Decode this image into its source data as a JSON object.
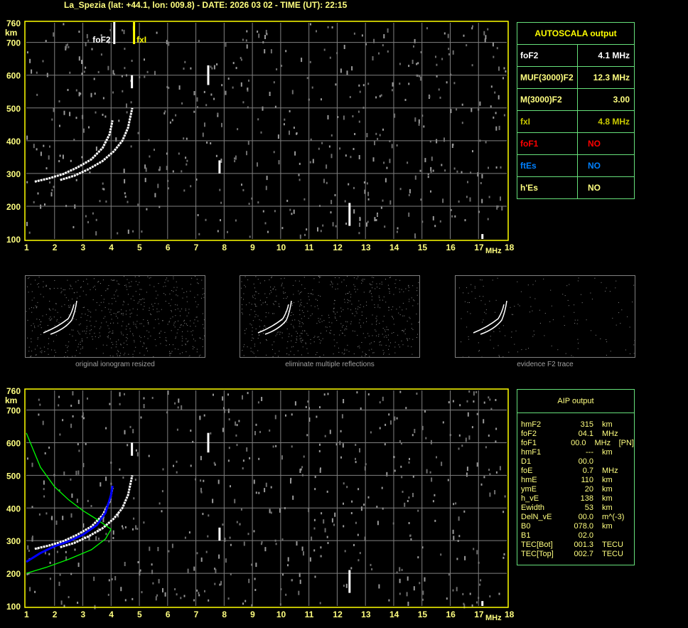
{
  "header": {
    "title": "La_Spezia (lat: +44.1, lon: 009.8) - DATE: 2026 03 02 - TIME (UT): 22:15"
  },
  "colors": {
    "frame": "#ffff00",
    "grid": "#808080",
    "table_border": "#66e07a",
    "text": "#ffff80",
    "fof2": "#ffffff",
    "fxi": "#c8c800",
    "fof1": "#ff0000",
    "ftes": "#0080ff",
    "profile": "#00ff00",
    "trace_fit": "#0000ff"
  },
  "autoscala": {
    "title": "AUTOSCALA output",
    "rows": [
      {
        "label": "foF2",
        "value": "4.1 MHz",
        "color": "#ffffff"
      },
      {
        "label": "MUF(3000)F2",
        "value": "12.3 MHz",
        "color": "#ffff80"
      },
      {
        "label": "M(3000)F2",
        "value": "3.00",
        "color": "#ffff80"
      },
      {
        "label": "fxI",
        "value": "4.8 MHz",
        "color": "#c8c800"
      },
      {
        "label": "foF1",
        "value": "NO",
        "color": "#ff0000"
      },
      {
        "label": "ftEs",
        "value": "NO",
        "color": "#0080ff"
      },
      {
        "label": "h'Es",
        "value": "NO",
        "color": "#ffff80"
      }
    ]
  },
  "aip": {
    "title": "AIP output",
    "rows": [
      [
        "hmF2",
        "315",
        "km",
        ""
      ],
      [
        "foF2",
        "04.1",
        "MHz",
        ""
      ],
      [
        "foF1",
        "00.0",
        "MHz",
        "[PN]"
      ],
      [
        "hmF1",
        "---",
        "km",
        ""
      ],
      [
        "D1",
        "00.0",
        "",
        ""
      ],
      [
        "foE",
        "0.7",
        "MHz",
        ""
      ],
      [
        "hmE",
        "110",
        "km",
        ""
      ],
      [
        "ymE",
        "20",
        "km",
        ""
      ],
      [
        "h_vE",
        "138",
        "km",
        ""
      ],
      [
        "Ewidth",
        "53",
        "km",
        ""
      ],
      [
        "DelN_vE",
        "00.0",
        "m^(-3)",
        ""
      ],
      [
        "B0",
        "078.0",
        "km",
        ""
      ],
      [
        "B1",
        "02.0",
        "",
        ""
      ],
      [
        "TEC[Bot]",
        "001.3",
        "TECU",
        ""
      ],
      [
        "TEC[Top]",
        "002.7",
        "TECU",
        ""
      ]
    ]
  },
  "thumbnails": [
    {
      "caption": "original ionogram resized"
    },
    {
      "caption": "eliminate multiple reflections"
    },
    {
      "caption": "evidence F2 trace"
    }
  ],
  "chart_data": {
    "type": "scatter",
    "xlabel": "MHz",
    "ylabel": "km",
    "xlim": [
      1,
      18
    ],
    "ylim": [
      100,
      760
    ],
    "xticks": [
      "1",
      "2",
      "3",
      "4",
      "5",
      "6",
      "7",
      "8",
      "9",
      "10",
      "11",
      "12",
      "13",
      "14",
      "15",
      "16",
      "17",
      "18"
    ],
    "yticks": [
      "100",
      "200",
      "300",
      "400",
      "500",
      "600",
      "700",
      "760"
    ],
    "grid": true,
    "markers": [
      {
        "label": "foF2",
        "freq": 4.1,
        "color": "#ffffff"
      },
      {
        "label": "fxI",
        "freq": 4.8,
        "color": "#ffff00"
      }
    ],
    "o_trace": [
      [
        1.3,
        275
      ],
      [
        1.8,
        285
      ],
      [
        2.3,
        298
      ],
      [
        2.8,
        318
      ],
      [
        3.3,
        343
      ],
      [
        3.7,
        378
      ],
      [
        3.95,
        420
      ],
      [
        4.05,
        462
      ]
    ],
    "x_trace": [
      [
        2.2,
        280
      ],
      [
        2.7,
        293
      ],
      [
        3.2,
        313
      ],
      [
        3.7,
        338
      ],
      [
        4.1,
        368
      ],
      [
        4.4,
        400
      ],
      [
        4.6,
        440
      ],
      [
        4.75,
        500
      ]
    ],
    "echo_spikes": [
      [
        7.4,
        570,
        630
      ],
      [
        7.8,
        300,
        340
      ],
      [
        12.4,
        140,
        210
      ],
      [
        17.1,
        100,
        115
      ],
      [
        4.7,
        560,
        600
      ]
    ],
    "profile_upper": [
      [
        1,
        630
      ],
      [
        1.5,
        525
      ],
      [
        2,
        465
      ],
      [
        2.5,
        425
      ],
      [
        3,
        392
      ],
      [
        3.5,
        365
      ],
      [
        4,
        335
      ]
    ],
    "profile_lower": [
      [
        4,
        335
      ],
      [
        3.8,
        305
      ],
      [
        3.3,
        272
      ],
      [
        2.5,
        243
      ],
      [
        1.7,
        218
      ],
      [
        1,
        200
      ]
    ],
    "fit_trace": [
      [
        1,
        235
      ],
      [
        1.5,
        262
      ],
      [
        2,
        283
      ],
      [
        2.5,
        298
      ],
      [
        3,
        318
      ],
      [
        3.5,
        348
      ],
      [
        3.8,
        385
      ],
      [
        4,
        440
      ],
      [
        4.05,
        468
      ]
    ]
  }
}
